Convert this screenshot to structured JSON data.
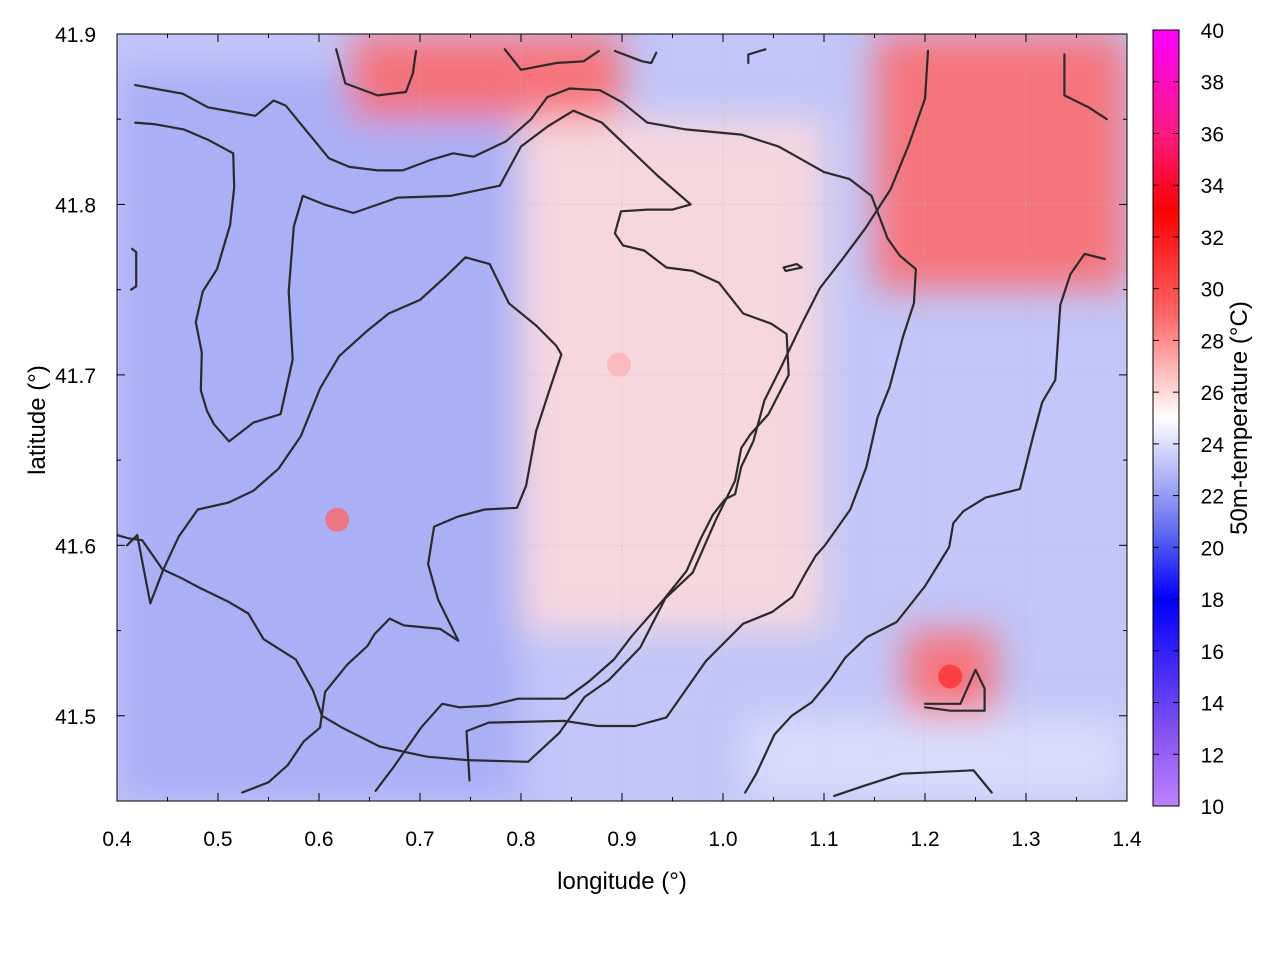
{
  "chart_data": {
    "type": "heatmap",
    "xlabel": "longitude (°)",
    "ylabel": "latitude (°)",
    "colorbar_label": "50m-temperature (°C)",
    "xlim": [
      0.4,
      1.4
    ],
    "ylim": [
      41.45,
      41.9
    ],
    "x_ticks": [
      "0.4",
      "0.5",
      "0.6",
      "0.7",
      "0.8",
      "0.9",
      "1.0",
      "1.1",
      "1.2",
      "1.3",
      "1.4"
    ],
    "y_ticks": [
      "41.5",
      "41.6",
      "41.7",
      "41.8",
      "41.9"
    ],
    "colorbar_range": [
      10,
      40
    ],
    "colorbar_ticks": [
      "10",
      "12",
      "14",
      "16",
      "18",
      "20",
      "22",
      "24",
      "26",
      "28",
      "30",
      "32",
      "34",
      "36",
      "38",
      "40"
    ],
    "colormap": [
      {
        "value": 10,
        "color": "#c080ff"
      },
      {
        "value": 13,
        "color": "#8050f0"
      },
      {
        "value": 18,
        "color": "#0000ff"
      },
      {
        "value": 21,
        "color": "#6f7af0"
      },
      {
        "value": 25,
        "color": "#ffffff"
      },
      {
        "value": 29,
        "color": "#ff6666"
      },
      {
        "value": 33,
        "color": "#ff0000"
      },
      {
        "value": 36,
        "color": "#ff1a80"
      },
      {
        "value": 40,
        "color": "#ff00ff"
      }
    ],
    "grid": true,
    "field_regions": [
      {
        "lon": [
          0.4,
          0.8
        ],
        "lat": [
          41.45,
          41.88
        ],
        "temperature_c": 22.5
      },
      {
        "lon": [
          0.8,
          1.1
        ],
        "lat": [
          41.55,
          41.85
        ],
        "temperature_c": 26
      },
      {
        "lon": [
          1.15,
          1.4
        ],
        "lat": [
          41.75,
          41.9
        ],
        "temperature_c": 29
      },
      {
        "lon": [
          0.63,
          0.9
        ],
        "lat": [
          41.85,
          41.9
        ],
        "temperature_c": 29
      },
      {
        "lon": [
          1.18,
          1.27
        ],
        "lat": [
          41.5,
          41.55
        ],
        "temperature_c": 29
      },
      {
        "lon": [
          1.02,
          1.4
        ],
        "lat": [
          41.45,
          41.5
        ],
        "temperature_c": 24
      }
    ],
    "contours": [
      [
        [
          0.418,
          41.87
        ],
        [
          0.465,
          41.865
        ],
        [
          0.49,
          41.857
        ],
        [
          0.537,
          41.852
        ],
        [
          0.555,
          41.861
        ],
        [
          0.567,
          41.858
        ],
        [
          0.585,
          41.845
        ],
        [
          0.61,
          41.827
        ],
        [
          0.63,
          41.822
        ],
        [
          0.658,
          41.82
        ],
        [
          0.683,
          41.82
        ],
        [
          0.71,
          41.826
        ],
        [
          0.733,
          41.83
        ],
        [
          0.753,
          41.828
        ],
        [
          0.785,
          41.837
        ],
        [
          0.81,
          41.85
        ],
        [
          0.826,
          41.863
        ],
        [
          0.848,
          41.868
        ],
        [
          0.878,
          41.867
        ],
        [
          0.9,
          41.86
        ],
        [
          0.925,
          41.848
        ],
        [
          0.963,
          41.844
        ],
        [
          1.018,
          41.841
        ],
        [
          1.055,
          41.834
        ],
        [
          1.1,
          41.819
        ],
        [
          1.125,
          41.815
        ],
        [
          1.147,
          41.805
        ],
        [
          1.163,
          41.78
        ],
        [
          1.175,
          41.77
        ],
        [
          1.191,
          41.762
        ],
        [
          1.189,
          41.742
        ],
        [
          1.178,
          41.722
        ],
        [
          1.165,
          41.693
        ],
        [
          1.153,
          41.675
        ],
        [
          1.142,
          41.646
        ],
        [
          1.126,
          41.621
        ],
        [
          1.101,
          41.6
        ],
        [
          1.092,
          41.594
        ],
        [
          1.082,
          41.584
        ],
        [
          1.069,
          41.57
        ],
        [
          1.049,
          41.561
        ],
        [
          1.02,
          41.554
        ],
        [
          0.983,
          41.532
        ],
        [
          0.944,
          41.499
        ],
        [
          0.913,
          41.494
        ],
        [
          0.876,
          41.494
        ],
        [
          0.843,
          41.497
        ],
        [
          0.768,
          41.496
        ],
        [
          0.746,
          41.491
        ],
        [
          0.749,
          41.462
        ]
      ],
      [
        [
          0.418,
          41.848
        ],
        [
          0.438,
          41.847
        ],
        [
          0.466,
          41.844
        ],
        [
          0.49,
          41.838
        ],
        [
          0.515,
          41.83
        ],
        [
          0.516,
          41.81
        ],
        [
          0.512,
          41.788
        ],
        [
          0.499,
          41.762
        ],
        [
          0.485,
          41.749
        ],
        [
          0.478,
          41.731
        ],
        [
          0.484,
          41.713
        ],
        [
          0.483,
          41.691
        ],
        [
          0.489,
          41.679
        ],
        [
          0.496,
          41.671
        ],
        [
          0.511,
          41.661
        ],
        [
          0.535,
          41.672
        ],
        [
          0.562,
          41.677
        ],
        [
          0.574,
          41.709
        ],
        [
          0.57,
          41.749
        ],
        [
          0.575,
          41.787
        ],
        [
          0.584,
          41.805
        ],
        [
          0.605,
          41.8
        ],
        [
          0.634,
          41.795
        ],
        [
          0.678,
          41.804
        ],
        [
          0.73,
          41.805
        ],
        [
          0.779,
          41.811
        ],
        [
          0.8,
          41.834
        ],
        [
          0.827,
          41.846
        ],
        [
          0.852,
          41.855
        ],
        [
          0.88,
          41.848
        ],
        [
          0.935,
          41.817
        ],
        [
          0.968,
          41.8
        ],
        [
          0.95,
          41.797
        ],
        [
          0.925,
          41.797
        ],
        [
          0.899,
          41.796
        ],
        [
          0.893,
          41.783
        ],
        [
          0.901,
          41.776
        ],
        [
          0.922,
          41.773
        ],
        [
          0.944,
          41.763
        ],
        [
          0.97,
          41.761
        ],
        [
          0.996,
          41.754
        ],
        [
          1.02,
          41.736
        ],
        [
          1.048,
          41.73
        ],
        [
          1.063,
          41.724
        ],
        [
          1.065,
          41.7
        ],
        [
          1.045,
          41.677
        ],
        [
          1.027,
          41.665
        ],
        [
          1.018,
          41.657
        ],
        [
          1.012,
          41.638
        ],
        [
          0.993,
          41.615
        ],
        [
          0.97,
          41.584
        ],
        [
          0.943,
          41.569
        ],
        [
          0.918,
          41.54
        ],
        [
          0.887,
          41.521
        ],
        [
          0.863,
          41.511
        ],
        [
          0.838,
          41.49
        ],
        [
          0.807,
          41.473
        ],
        [
          0.747,
          41.474
        ],
        [
          0.707,
          41.476
        ],
        [
          0.66,
          41.482
        ],
        [
          0.623,
          41.493
        ],
        [
          0.603,
          41.5
        ],
        [
          0.594,
          41.515
        ],
        [
          0.577,
          41.533
        ],
        [
          0.545,
          41.545
        ],
        [
          0.53,
          41.56
        ],
        [
          0.51,
          41.567
        ],
        [
          0.482,
          41.575
        ],
        [
          0.463,
          41.581
        ],
        [
          0.445,
          41.586
        ],
        [
          0.425,
          41.603
        ],
        [
          0.412,
          41.604
        ],
        [
          0.4,
          41.606
        ]
      ],
      [
        [
          0.414,
          41.75
        ],
        [
          0.419,
          41.752
        ],
        [
          0.419,
          41.772
        ],
        [
          0.415,
          41.774
        ]
      ],
      [
        [
          0.41,
          41.6
        ],
        [
          0.42,
          41.606
        ],
        [
          0.433,
          41.566
        ],
        [
          0.446,
          41.586
        ],
        [
          0.461,
          41.605
        ],
        [
          0.48,
          41.621
        ],
        [
          0.51,
          41.625
        ],
        [
          0.535,
          41.632
        ],
        [
          0.56,
          41.645
        ],
        [
          0.582,
          41.664
        ],
        [
          0.601,
          41.692
        ],
        [
          0.62,
          41.711
        ],
        [
          0.648,
          41.726
        ],
        [
          0.669,
          41.736
        ],
        [
          0.7,
          41.744
        ],
        [
          0.726,
          41.758
        ],
        [
          0.745,
          41.769
        ],
        [
          0.769,
          41.765
        ],
        [
          0.788,
          41.742
        ],
        [
          0.815,
          41.729
        ],
        [
          0.835,
          41.717
        ],
        [
          0.84,
          41.712
        ],
        [
          0.827,
          41.689
        ],
        [
          0.815,
          41.667
        ],
        [
          0.805,
          41.635
        ],
        [
          0.796,
          41.622
        ],
        [
          0.764,
          41.621
        ],
        [
          0.738,
          41.617
        ],
        [
          0.714,
          41.611
        ],
        [
          0.708,
          41.589
        ],
        [
          0.718,
          41.568
        ],
        [
          0.738,
          41.544
        ],
        [
          0.72,
          41.551
        ],
        [
          0.684,
          41.553
        ],
        [
          0.67,
          41.557
        ],
        [
          0.655,
          41.548
        ],
        [
          0.648,
          41.541
        ],
        [
          0.628,
          41.53
        ],
        [
          0.606,
          41.514
        ],
        [
          0.601,
          41.493
        ],
        [
          0.585,
          41.485
        ],
        [
          0.569,
          41.471
        ],
        [
          0.55,
          41.461
        ],
        [
          0.524,
          41.455
        ]
      ],
      [
        [
          0.656,
          41.456
        ],
        [
          0.674,
          41.47
        ],
        [
          0.701,
          41.493
        ],
        [
          0.722,
          41.507
        ],
        [
          0.739,
          41.505
        ],
        [
          0.769,
          41.506
        ],
        [
          0.797,
          41.51
        ],
        [
          0.844,
          41.51
        ],
        [
          0.867,
          41.52
        ],
        [
          0.892,
          41.533
        ],
        [
          0.91,
          41.547
        ],
        [
          0.941,
          41.568
        ],
        [
          0.964,
          41.585
        ],
        [
          0.978,
          41.604
        ],
        [
          0.99,
          41.618
        ],
        [
          1.002,
          41.627
        ],
        [
          1.012,
          41.63
        ],
        [
          1.018,
          41.646
        ],
        [
          1.03,
          41.661
        ],
        [
          1.041,
          41.685
        ],
        [
          1.057,
          41.704
        ],
        [
          1.078,
          41.73
        ],
        [
          1.096,
          41.751
        ],
        [
          1.117,
          41.767
        ],
        [
          1.141,
          41.786
        ],
        [
          1.166,
          41.809
        ],
        [
          1.184,
          41.835
        ],
        [
          1.2,
          41.862
        ],
        [
          1.203,
          41.89
        ]
      ],
      [
        [
          1.06,
          41.763
        ],
        [
          1.073,
          41.765
        ],
        [
          1.078,
          41.763
        ],
        [
          1.062,
          41.761
        ],
        [
          1.06,
          41.763
        ]
      ],
      [
        [
          1.022,
          41.455
        ],
        [
          1.033,
          41.466
        ],
        [
          1.051,
          41.489
        ],
        [
          1.068,
          41.5
        ],
        [
          1.088,
          41.508
        ],
        [
          1.106,
          41.521
        ],
        [
          1.121,
          41.534
        ],
        [
          1.142,
          41.546
        ],
        [
          1.172,
          41.555
        ],
        [
          1.2,
          41.576
        ],
        [
          1.224,
          41.599
        ],
        [
          1.228,
          41.613
        ],
        [
          1.238,
          41.62
        ],
        [
          1.26,
          41.628
        ],
        [
          1.294,
          41.633
        ],
        [
          1.307,
          41.664
        ],
        [
          1.316,
          41.684
        ],
        [
          1.329,
          41.697
        ],
        [
          1.334,
          41.741
        ],
        [
          1.344,
          41.759
        ],
        [
          1.358,
          41.771
        ],
        [
          1.378,
          41.768
        ]
      ],
      [
        [
          1.11,
          41.453
        ],
        [
          1.14,
          41.459
        ],
        [
          1.177,
          41.466
        ],
        [
          1.248,
          41.468
        ],
        [
          1.266,
          41.455
        ]
      ],
      [
        [
          1.2,
          41.507
        ],
        [
          1.235,
          41.507
        ],
        [
          1.25,
          41.527
        ],
        [
          1.259,
          41.516
        ],
        [
          1.259,
          41.503
        ],
        [
          1.225,
          41.503
        ],
        [
          1.2,
          41.505
        ]
      ],
      [
        [
          1.338,
          41.888
        ],
        [
          1.338,
          41.864
        ],
        [
          1.362,
          41.857
        ],
        [
          1.38,
          41.85
        ]
      ],
      [
        [
          0.617,
          41.891
        ],
        [
          0.626,
          41.871
        ],
        [
          0.658,
          41.864
        ],
        [
          0.686,
          41.866
        ],
        [
          0.693,
          41.877
        ],
        [
          0.696,
          41.89
        ]
      ],
      [
        [
          0.784,
          41.891
        ],
        [
          0.8,
          41.879
        ],
        [
          0.835,
          41.883
        ],
        [
          0.862,
          41.884
        ],
        [
          0.877,
          41.89
        ]
      ],
      [
        [
          0.893,
          41.89
        ],
        [
          0.92,
          41.884
        ],
        [
          0.929,
          41.883
        ],
        [
          0.934,
          41.889
        ]
      ],
      [
        [
          1.025,
          41.883
        ],
        [
          1.025,
          41.888
        ],
        [
          1.042,
          41.891
        ]
      ]
    ],
    "hot_spots": [
      {
        "lon": 0.618,
        "lat": 41.615,
        "temperature_c": 29
      },
      {
        "lon": 0.897,
        "lat": 41.706,
        "temperature_c": 27
      },
      {
        "lon": 1.225,
        "lat": 41.523,
        "temperature_c": 31
      }
    ]
  }
}
